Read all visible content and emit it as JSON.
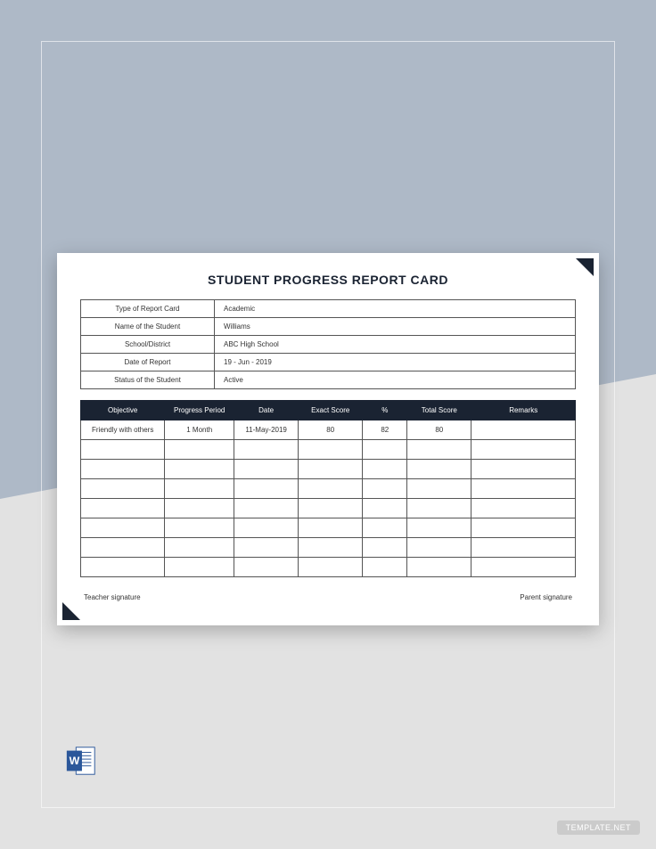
{
  "background": {
    "top_color": "#aeb9c7",
    "bottom_color": "#e2e2e2",
    "frame_border_color": "rgba(255,255,255,0.6)"
  },
  "card": {
    "bg": "#ffffff",
    "corner_color": "#1a2332",
    "title": "STUDENT PROGRESS REPORT CARD",
    "title_color": "#1a2332",
    "title_fontsize": 14
  },
  "info": {
    "border_color": "#555555",
    "label_fontsize": 8,
    "rows": [
      {
        "label": "Type of Report Card",
        "value": "Academic"
      },
      {
        "label": "Name of the Student",
        "value": "Williams"
      },
      {
        "label": "School/District",
        "value": "ABC High School"
      },
      {
        "label": "Date of Report",
        "value": "19 - Jun - 2019"
      },
      {
        "label": "Status of the Student",
        "value": "Active"
      }
    ]
  },
  "table": {
    "header_bg": "#1a2332",
    "header_text_color": "#ffffff",
    "border_color": "#555555",
    "cell_fontsize": 8,
    "columns": [
      "Objective",
      "Progress Period",
      "Date",
      "Exact Score",
      "%",
      "Total Score",
      "Remarks"
    ],
    "rows": [
      [
        "Friendly with others",
        "1 Month",
        "11-May-2019",
        "80",
        "82",
        "80",
        ""
      ],
      [
        "",
        "",
        "",
        "",
        "",
        "",
        ""
      ],
      [
        "",
        "",
        "",
        "",
        "",
        "",
        ""
      ],
      [
        "",
        "",
        "",
        "",
        "",
        "",
        ""
      ],
      [
        "",
        "",
        "",
        "",
        "",
        "",
        ""
      ],
      [
        "",
        "",
        "",
        "",
        "",
        "",
        ""
      ],
      [
        "",
        "",
        "",
        "",
        "",
        "",
        ""
      ],
      [
        "",
        "",
        "",
        "",
        "",
        "",
        ""
      ]
    ]
  },
  "signatures": {
    "left": "Teacher signature",
    "right": "Parent signature",
    "fontsize": 8
  },
  "word_icon": {
    "back_color": "#ffffff",
    "front_color": "#2b579a",
    "border_color": "#2b579a",
    "letter": "W"
  },
  "watermark": "TEMPLATE.NET"
}
